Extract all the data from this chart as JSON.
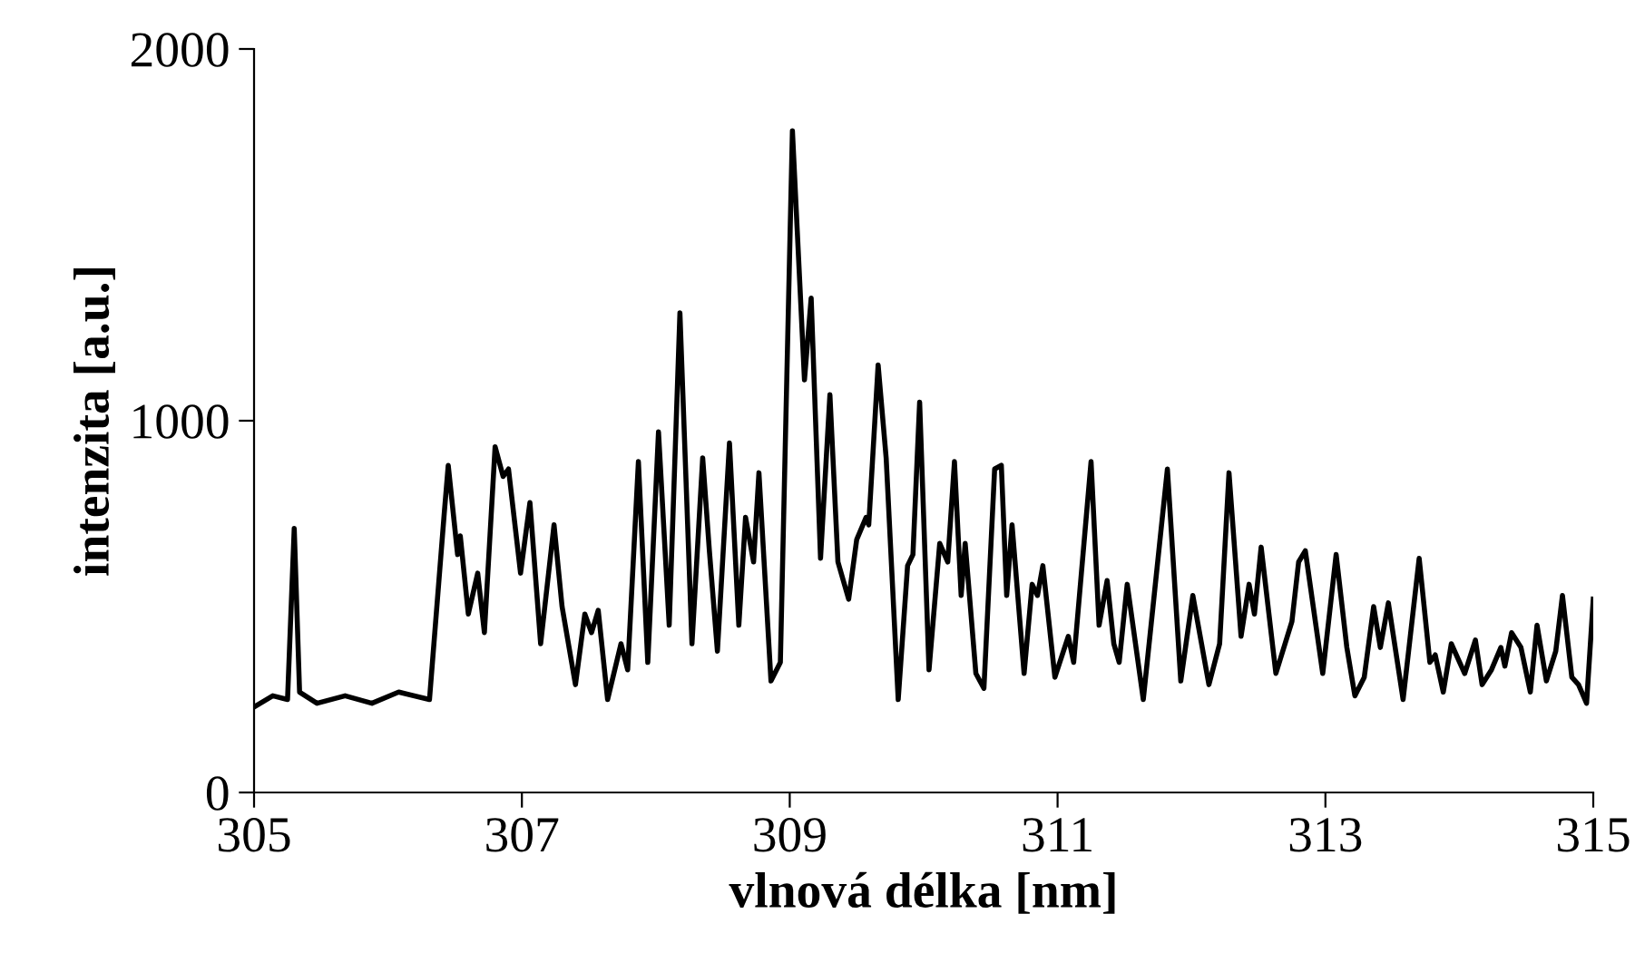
{
  "chart_data": {
    "type": "line",
    "xlabel": "vlnová délka [nm]",
    "ylabel": "intenzita [a.u.]",
    "xlim": [
      305,
      315
    ],
    "xticks": [
      305,
      307,
      309,
      311,
      313,
      315
    ],
    "ylim": [
      0,
      2000
    ],
    "yticks": [
      0,
      1000,
      2000
    ],
    "grid": false,
    "legend": false,
    "marker": "none",
    "line_style": "solid",
    "series": [
      {
        "color": "#000000",
        "x": [
          305.0,
          305.14,
          305.25,
          305.3,
          305.34,
          305.47,
          305.68,
          305.88,
          306.08,
          306.31,
          306.42,
          306.45,
          306.52,
          306.54,
          306.6,
          306.67,
          306.72,
          306.8,
          306.86,
          306.9,
          306.99,
          307.06,
          307.14,
          307.24,
          307.3,
          307.4,
          307.47,
          307.52,
          307.57,
          307.64,
          307.74,
          307.79,
          307.87,
          307.94,
          308.02,
          308.1,
          308.18,
          308.27,
          308.35,
          308.4,
          308.46,
          308.55,
          308.62,
          308.67,
          308.73,
          308.77,
          308.86,
          308.93,
          309.02,
          309.11,
          309.16,
          309.23,
          309.3,
          309.36,
          309.44,
          309.5,
          309.57,
          309.59,
          309.66,
          309.72,
          309.81,
          309.88,
          309.92,
          309.97,
          310.04,
          310.12,
          310.18,
          310.23,
          310.28,
          310.31,
          310.39,
          310.45,
          310.53,
          310.58,
          310.62,
          310.66,
          310.75,
          310.81,
          310.85,
          310.89,
          310.98,
          311.08,
          311.12,
          311.25,
          311.31,
          311.37,
          311.42,
          311.46,
          311.52,
          311.64,
          311.82,
          311.92,
          312.01,
          312.13,
          312.21,
          312.28,
          312.37,
          312.43,
          312.47,
          312.52,
          312.63,
          312.75,
          312.8,
          312.85,
          312.98,
          313.08,
          313.16,
          313.22,
          313.29,
          313.36,
          313.41,
          313.47,
          313.58,
          313.7,
          313.78,
          313.82,
          313.88,
          313.94,
          314.04,
          314.12,
          314.17,
          314.24,
          314.31,
          314.34,
          314.39,
          314.46,
          314.53,
          314.58,
          314.65,
          314.72,
          314.77,
          314.84,
          314.89,
          314.95,
          315.0
        ],
        "values": [
          230,
          260,
          250,
          710,
          270,
          240,
          260,
          240,
          270,
          250,
          750,
          880,
          640,
          690,
          480,
          590,
          430,
          930,
          850,
          870,
          590,
          780,
          400,
          720,
          500,
          290,
          480,
          430,
          490,
          250,
          400,
          330,
          890,
          350,
          970,
          450,
          1290,
          400,
          900,
          650,
          380,
          940,
          450,
          740,
          620,
          860,
          300,
          350,
          1780,
          1110,
          1330,
          630,
          1070,
          620,
          520,
          680,
          740,
          720,
          1150,
          900,
          250,
          610,
          640,
          1050,
          330,
          670,
          620,
          890,
          530,
          670,
          320,
          280,
          870,
          880,
          530,
          720,
          320,
          560,
          530,
          610,
          310,
          420,
          350,
          890,
          450,
          570,
          400,
          350,
          560,
          250,
          870,
          300,
          530,
          290,
          400,
          860,
          420,
          560,
          480,
          660,
          320,
          460,
          620,
          650,
          320,
          640,
          390,
          260,
          310,
          500,
          390,
          510,
          250,
          630,
          350,
          370,
          270,
          400,
          320,
          410,
          290,
          330,
          390,
          340,
          430,
          390,
          270,
          450,
          300,
          380,
          530,
          310,
          290,
          240,
          520
        ]
      }
    ]
  }
}
